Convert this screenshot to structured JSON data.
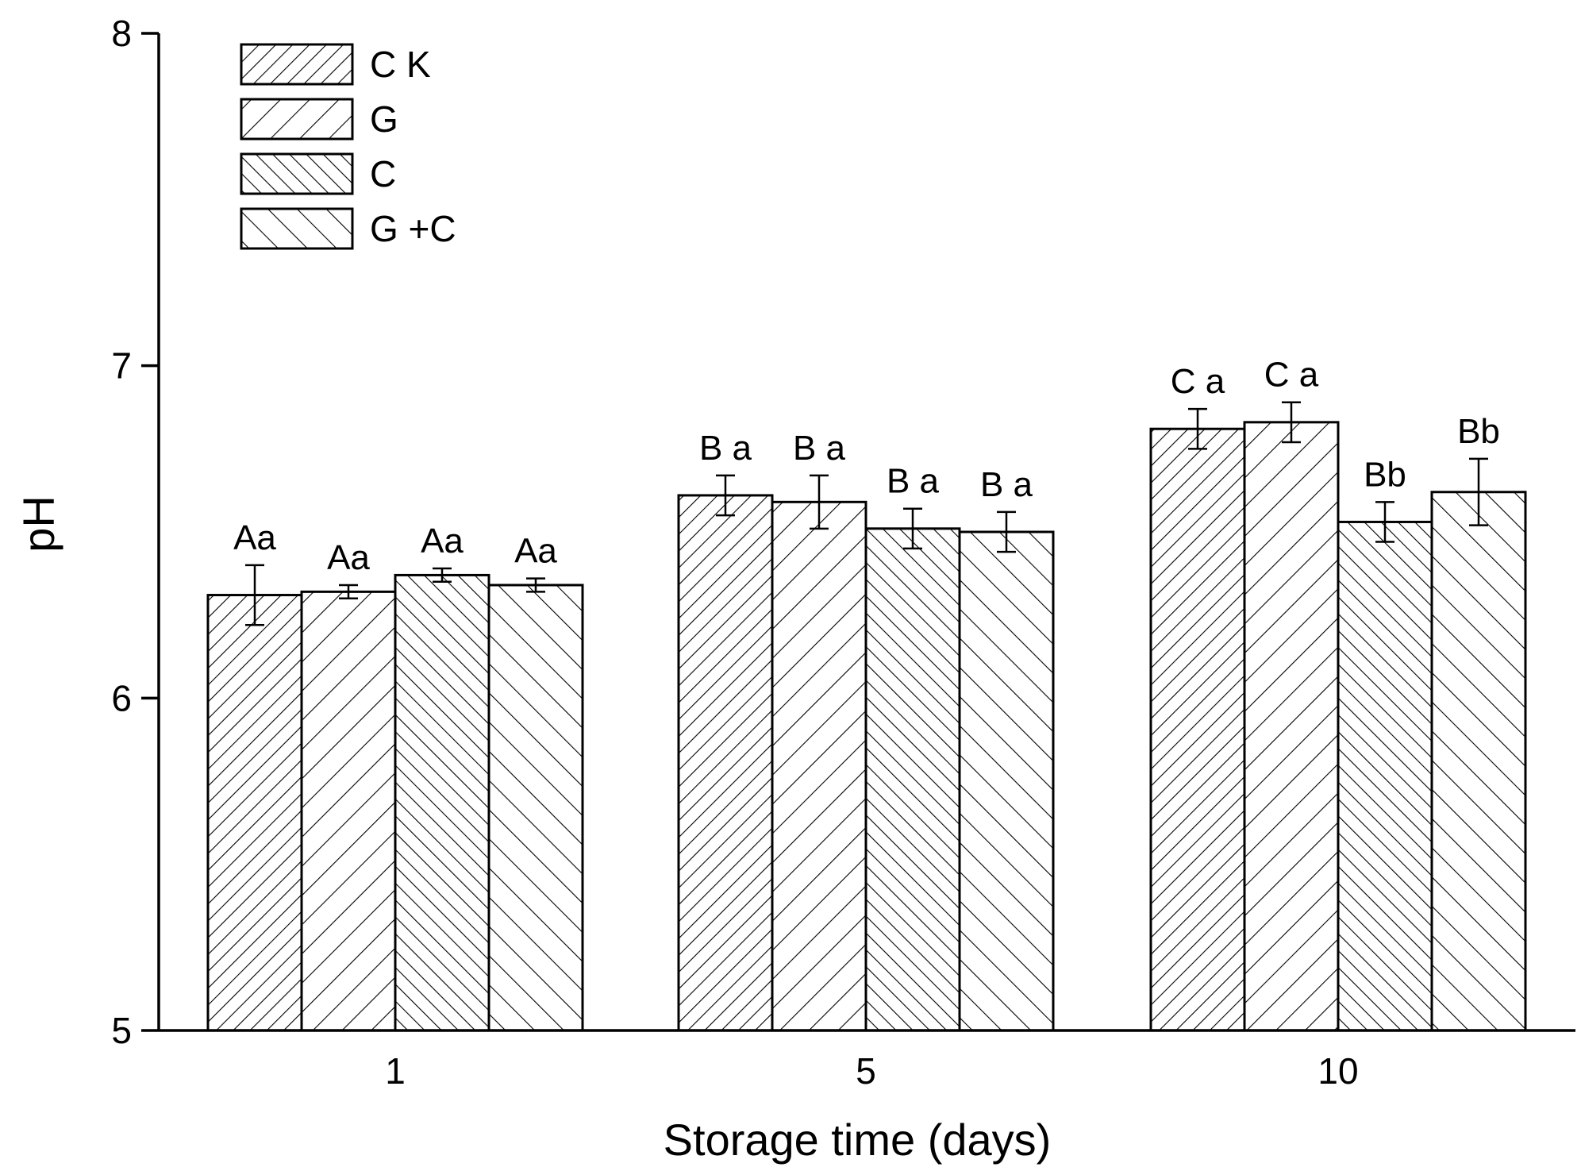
{
  "chart_data": {
    "type": "bar",
    "title": "",
    "xlabel": "Storage time (days)",
    "ylabel": "pH",
    "ylim": [
      5,
      8
    ],
    "yticks": [
      5,
      6,
      7,
      8
    ],
    "categories": [
      "1",
      "5",
      "10"
    ],
    "legend_position": "top-left",
    "grid": false,
    "series": [
      {
        "name": "C K",
        "pattern": "hatch-dense-forward",
        "values": [
          6.31,
          6.61,
          6.81
        ],
        "errors": [
          0.09,
          0.06,
          0.06
        ],
        "labels": [
          "Aa",
          "B a",
          "C a"
        ]
      },
      {
        "name": "G",
        "pattern": "hatch-sparse-forward",
        "values": [
          6.32,
          6.59,
          6.83
        ],
        "errors": [
          0.02,
          0.08,
          0.06
        ],
        "labels": [
          "Aa",
          "B a",
          "C a"
        ]
      },
      {
        "name": "C",
        "pattern": "hatch-dense-backward",
        "values": [
          6.37,
          6.51,
          6.53
        ],
        "errors": [
          0.02,
          0.06,
          0.06
        ],
        "labels": [
          "Aa",
          "B a",
          "Bb"
        ]
      },
      {
        "name": "G +C",
        "pattern": "hatch-sparse-backward",
        "values": [
          6.34,
          6.5,
          6.62
        ],
        "errors": [
          0.02,
          0.06,
          0.1
        ],
        "labels": [
          "Aa",
          "B a",
          "Bb"
        ]
      }
    ]
  }
}
